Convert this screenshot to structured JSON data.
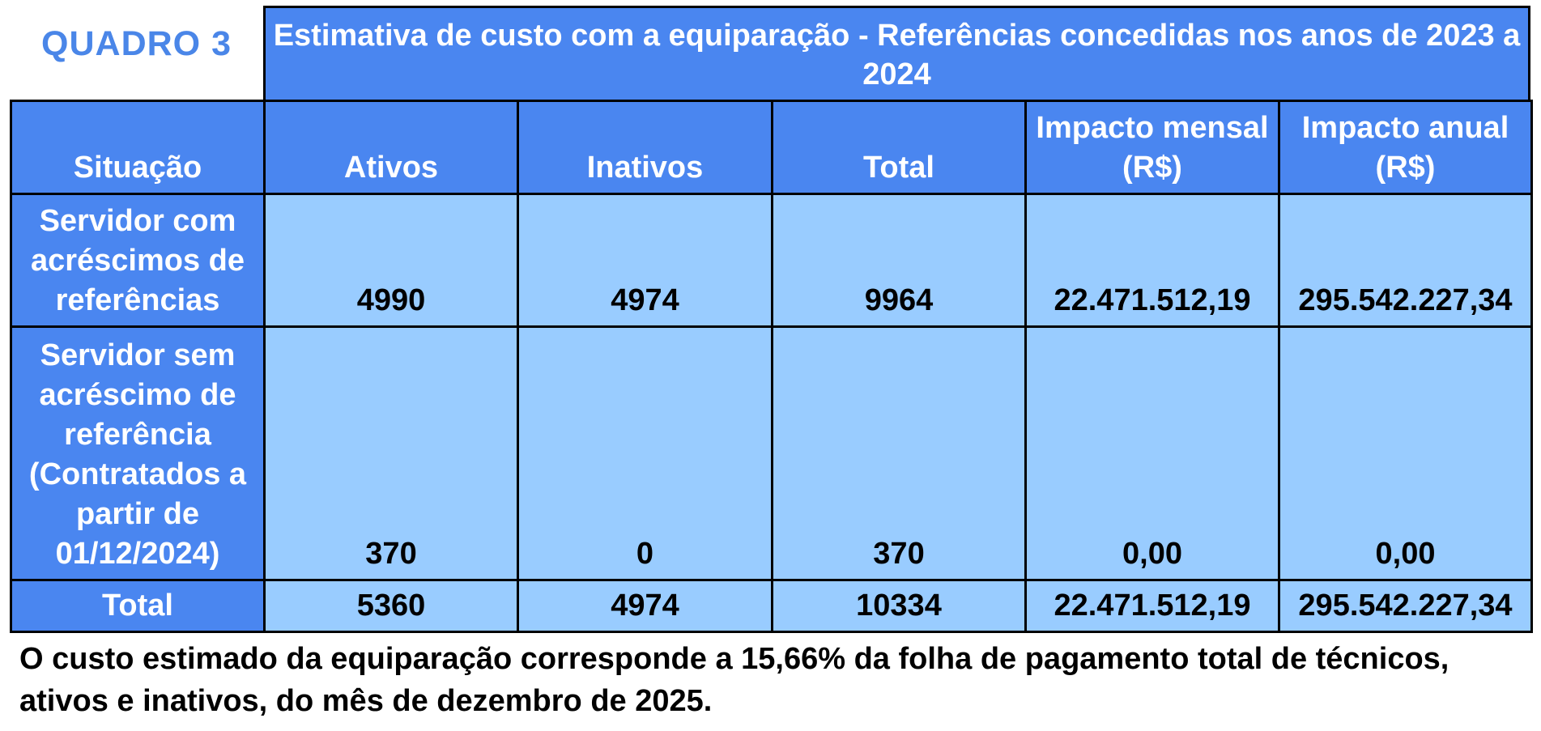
{
  "header": {
    "label": "QUADRO 3",
    "title": "Estimativa de custo com a equiparação - Referências concedidas nos anos de 2023 a 2024"
  },
  "table": {
    "columns": [
      "Situação",
      "Ativos",
      "Inativos",
      "Total",
      "Impacto mensal (R$)",
      "Impacto anual (R$)"
    ],
    "rows": [
      [
        "Servidor com acréscimos de referências",
        "4990",
        "4974",
        "9964",
        "22.471.512,19",
        "295.542.227,34"
      ],
      [
        "Servidor sem acréscimo de referência (Contratados a partir de 01/12/2024)",
        "370",
        "0",
        "370",
        "0,00",
        "0,00"
      ],
      [
        "Total",
        "5360",
        "4974",
        "10334",
        "22.471.512,19",
        "295.542.227,34"
      ]
    ]
  },
  "footnote": "O custo estimado da equiparação corresponde a 15,66% da folha de pagamento total de técnicos, ativos e inativos, do mês de dezembro de 2025."
}
